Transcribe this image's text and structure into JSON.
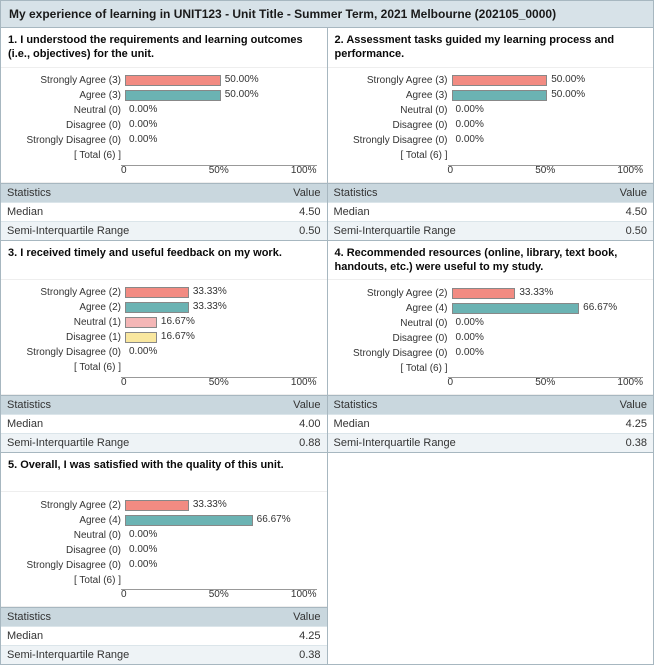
{
  "page_title": "My experience of learning in UNIT123 - Unit Title - Summer Term, 2021 Melbourne (202105_0000)",
  "colors": {
    "header_bg": "#d7e2e8",
    "stats_head_bg": "#c9d7de",
    "stats_alt_bg": "#eef3f6",
    "border": "#a7b7c0",
    "strongly_agree": "#f28b82",
    "agree": "#6bb3b3",
    "neutral": "#f4b6b6",
    "disagree": "#f9e79f",
    "strongly_disagree": "#cccccc"
  },
  "axis": {
    "min": 0,
    "mid": 50,
    "max": 100,
    "min_label": "0",
    "mid_label": "50%",
    "max_label": "100%"
  },
  "stats_labels": {
    "header_stat": "Statistics",
    "header_val": "Value",
    "median": "Median",
    "siqr": "Semi-Interquartile Range"
  },
  "panels": [
    {
      "title": "1. I understood the requirements and learning outcomes (i.e., objectives) for the unit.",
      "rows": [
        {
          "label": "Strongly Agree (3)",
          "pct": 50.0,
          "pct_label": "50.00%",
          "color_key": "strongly_agree"
        },
        {
          "label": "Agree (3)",
          "pct": 50.0,
          "pct_label": "50.00%",
          "color_key": "agree"
        },
        {
          "label": "Neutral (0)",
          "pct": 0.0,
          "pct_label": "0.00%",
          "color_key": "neutral"
        },
        {
          "label": "Disagree (0)",
          "pct": 0.0,
          "pct_label": "0.00%",
          "color_key": "disagree"
        },
        {
          "label": "Strongly Disagree (0)",
          "pct": 0.0,
          "pct_label": "0.00%",
          "color_key": "strongly_disagree"
        },
        {
          "label": "[ Total (6) ]",
          "pct": null,
          "pct_label": "",
          "color_key": null
        }
      ],
      "median": "4.50",
      "siqr": "0.50"
    },
    {
      "title": "2. Assessment tasks guided my learning process and performance.",
      "rows": [
        {
          "label": "Strongly Agree (3)",
          "pct": 50.0,
          "pct_label": "50.00%",
          "color_key": "strongly_agree"
        },
        {
          "label": "Agree (3)",
          "pct": 50.0,
          "pct_label": "50.00%",
          "color_key": "agree"
        },
        {
          "label": "Neutral (0)",
          "pct": 0.0,
          "pct_label": "0.00%",
          "color_key": "neutral"
        },
        {
          "label": "Disagree (0)",
          "pct": 0.0,
          "pct_label": "0.00%",
          "color_key": "disagree"
        },
        {
          "label": "Strongly Disagree (0)",
          "pct": 0.0,
          "pct_label": "0.00%",
          "color_key": "strongly_disagree"
        },
        {
          "label": "[ Total (6) ]",
          "pct": null,
          "pct_label": "",
          "color_key": null
        }
      ],
      "median": "4.50",
      "siqr": "0.50"
    },
    {
      "title": "3. I received timely and useful feedback on my work.",
      "rows": [
        {
          "label": "Strongly Agree (2)",
          "pct": 33.33,
          "pct_label": "33.33%",
          "color_key": "strongly_agree"
        },
        {
          "label": "Agree (2)",
          "pct": 33.33,
          "pct_label": "33.33%",
          "color_key": "agree"
        },
        {
          "label": "Neutral (1)",
          "pct": 16.67,
          "pct_label": "16.67%",
          "color_key": "neutral"
        },
        {
          "label": "Disagree (1)",
          "pct": 16.67,
          "pct_label": "16.67%",
          "color_key": "disagree"
        },
        {
          "label": "Strongly Disagree (0)",
          "pct": 0.0,
          "pct_label": "0.00%",
          "color_key": "strongly_disagree"
        },
        {
          "label": "[ Total (6) ]",
          "pct": null,
          "pct_label": "",
          "color_key": null
        }
      ],
      "median": "4.00",
      "siqr": "0.88"
    },
    {
      "title": "4. Recommended resources (online, library, text book, handouts, etc.) were useful to my study.",
      "rows": [
        {
          "label": "Strongly Agree (2)",
          "pct": 33.33,
          "pct_label": "33.33%",
          "color_key": "strongly_agree"
        },
        {
          "label": "Agree (4)",
          "pct": 66.67,
          "pct_label": "66.67%",
          "color_key": "agree"
        },
        {
          "label": "Neutral (0)",
          "pct": 0.0,
          "pct_label": "0.00%",
          "color_key": "neutral"
        },
        {
          "label": "Disagree (0)",
          "pct": 0.0,
          "pct_label": "0.00%",
          "color_key": "disagree"
        },
        {
          "label": "Strongly Disagree (0)",
          "pct": 0.0,
          "pct_label": "0.00%",
          "color_key": "strongly_disagree"
        },
        {
          "label": "[ Total (6) ]",
          "pct": null,
          "pct_label": "",
          "color_key": null
        }
      ],
      "median": "4.25",
      "siqr": "0.38"
    },
    {
      "title": "5. Overall, I was satisfied with the quality of this unit.",
      "rows": [
        {
          "label": "Strongly Agree (2)",
          "pct": 33.33,
          "pct_label": "33.33%",
          "color_key": "strongly_agree"
        },
        {
          "label": "Agree (4)",
          "pct": 66.67,
          "pct_label": "66.67%",
          "color_key": "agree"
        },
        {
          "label": "Neutral (0)",
          "pct": 0.0,
          "pct_label": "0.00%",
          "color_key": "neutral"
        },
        {
          "label": "Disagree (0)",
          "pct": 0.0,
          "pct_label": "0.00%",
          "color_key": "disagree"
        },
        {
          "label": "Strongly Disagree (0)",
          "pct": 0.0,
          "pct_label": "0.00%",
          "color_key": "strongly_disagree"
        },
        {
          "label": "[ Total (6) ]",
          "pct": null,
          "pct_label": "",
          "color_key": null
        }
      ],
      "median": "4.25",
      "siqr": "0.38"
    }
  ]
}
